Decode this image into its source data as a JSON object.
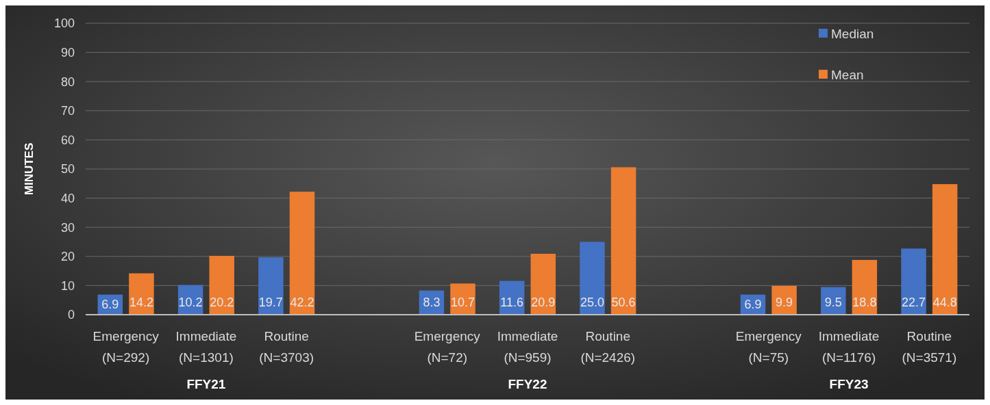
{
  "chart_data": {
    "type": "bar",
    "ylabel": "MINUTES",
    "categories": [
      "Emergency\n(N=292)",
      "Immediate\n(N=1301)",
      "Routine\n(N=3703)",
      null,
      "Emergency\n(N=72)",
      "Immediate\n(N=959)",
      "Routine\n(N=2426)",
      null,
      "Emergency\n(N=75)",
      "Immediate\n(N=1176)",
      "Routine\n(N=3571)"
    ],
    "series": [
      {
        "name": "Median",
        "color": "#4472c4",
        "values": [
          6.9,
          10.2,
          19.7,
          null,
          8.3,
          11.6,
          25.0,
          null,
          6.9,
          9.5,
          22.7
        ],
        "value_labels": [
          "6.9",
          "10.2",
          "19.7",
          null,
          "8.3",
          "11.6",
          "25.0",
          null,
          "6.9",
          "9.5",
          "22.7"
        ]
      },
      {
        "name": "Mean",
        "color": "#ed7d31",
        "values": [
          14.2,
          20.2,
          42.2,
          null,
          10.7,
          20.9,
          50.6,
          null,
          9.9,
          18.8,
          44.8
        ],
        "value_labels": [
          "14.2",
          "20.2",
          "42.2",
          null,
          "10.7",
          "20.9",
          "50.6",
          null,
          "9.9",
          "18.8",
          "44.8"
        ]
      }
    ],
    "annotations": [
      "FFY21",
      "FFY22",
      "FFY23"
    ],
    "ylim": [
      0,
      100
    ],
    "yticks": [
      0,
      10,
      20,
      30,
      40,
      50,
      60,
      70,
      80,
      90,
      100
    ],
    "grid": "y",
    "legend": "top right"
  }
}
